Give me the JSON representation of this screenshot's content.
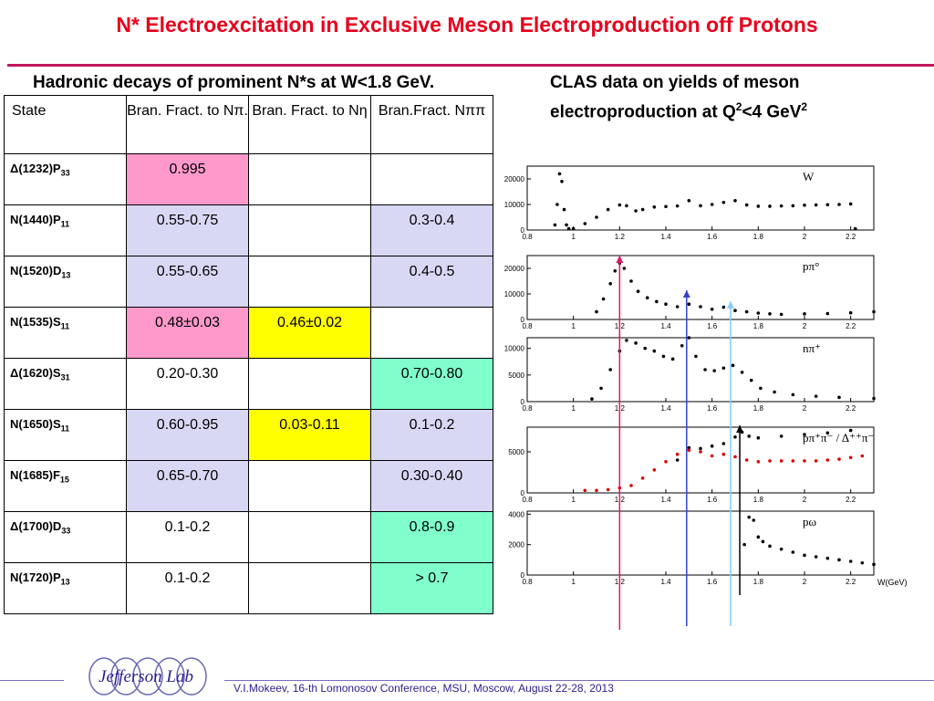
{
  "header": {
    "title": "N* Electroexcitation in Exclusive Meson Electroproduction off Protons",
    "subtitle_left": "Hadronic decays of prominent N*s at W<1.8 GeV.",
    "subtitle_right_line1": "CLAS data on yields of meson",
    "subtitle_right_line2_pre": "electroproduction at  Q",
    "subtitle_right_sup": "2",
    "subtitle_right_line2_post": "<4 GeV",
    "subtitle_right_sup2": "2"
  },
  "table": {
    "headers": [
      "State",
      "Bran. Fract. to Nπ.",
      "Bran. Fract. to Nη",
      "Bran.Fract. Nππ"
    ],
    "rows": [
      {
        "state": "Δ(1232)P",
        "sub": "33",
        "npi": "0.995",
        "neta": "",
        "npipi": "",
        "c1": "pink",
        "c2": "",
        "c3": ""
      },
      {
        "state": "N(1440)P",
        "sub": "11",
        "npi": "0.55-0.75",
        "neta": "",
        "npipi": "0.3-0.4",
        "c1": "lav",
        "c2": "",
        "c3": "lav"
      },
      {
        "state": "N(1520)D",
        "sub": "13",
        "npi": "0.55-0.65",
        "neta": "",
        "npipi": "0.4-0.5",
        "c1": "lav",
        "c2": "",
        "c3": "lav"
      },
      {
        "state": "N(1535)S",
        "sub": "11",
        "npi": "0.48±0.03",
        "neta": "0.46±0.02",
        "npipi": "",
        "c1": "pink",
        "c2": "yel",
        "c3": ""
      },
      {
        "state": "Δ(1620)S",
        "sub": "31",
        "npi": "0.20-0.30",
        "neta": "",
        "npipi": "0.70-0.80",
        "c1": "",
        "c2": "",
        "c3": "aqua"
      },
      {
        "state": "N(1650)S",
        "sub": "11",
        "npi": "0.60-0.95",
        "neta": "0.03-0.11",
        "npipi": "0.1-0.2",
        "c1": "lav",
        "c2": "yel",
        "c3": "lav"
      },
      {
        "state": "N(1685)F",
        "sub": "15",
        "npi": "0.65-0.70",
        "neta": "",
        "npipi": "0.30-0.40",
        "c1": "lav",
        "c2": "",
        "c3": "lav"
      },
      {
        "state": "Δ(1700)D",
        "sub": "33",
        "npi": "0.1-0.2",
        "neta": "",
        "npipi": "0.8-0.9",
        "c1": "",
        "c2": "",
        "c3": "aqua"
      },
      {
        "state": "N(1720)P",
        "sub": "13",
        "npi": "0.1-0.2",
        "neta": "",
        "npipi": "> 0.7",
        "c1": "",
        "c2": "",
        "c3": "aqua"
      }
    ]
  },
  "colors": {
    "pink": "#ff99cc",
    "lav": "#d8d8f5",
    "yel": "#ffff00",
    "aqua": "#80ffcc",
    "title": "#e8001c"
  },
  "chart_data": [
    {
      "type": "scatter",
      "label": "W",
      "ylim": [
        0,
        25000
      ],
      "yticks": [
        "0",
        "10000",
        "20000"
      ],
      "xticks": [
        "0.8",
        "1",
        "1.2",
        "1.4",
        "1.6",
        "1.8",
        "2",
        "2.2"
      ],
      "series": [
        {
          "x": [
            0.92,
            0.93,
            0.94,
            0.95,
            0.96,
            0.97,
            0.98,
            1.0,
            1.05,
            1.1,
            1.15,
            1.2,
            1.23,
            1.27,
            1.3,
            1.35,
            1.4,
            1.45,
            1.5,
            1.55,
            1.6,
            1.65,
            1.7,
            1.75,
            1.8,
            1.85,
            1.9,
            1.95,
            2.0,
            2.05,
            2.1,
            2.15,
            2.2,
            2.22
          ],
          "y": [
            2000,
            10000,
            22000,
            19000,
            8000,
            2000,
            500,
            500,
            2500,
            5000,
            8000,
            9800,
            9500,
            7500,
            8000,
            9000,
            9200,
            9400,
            11500,
            9500,
            10000,
            10800,
            11500,
            9800,
            9300,
            9300,
            9400,
            9500,
            9700,
            9800,
            9900,
            10000,
            10200,
            500
          ]
        }
      ]
    },
    {
      "type": "scatter",
      "label": "pπ°",
      "ylim": [
        0,
        25000
      ],
      "yticks": [
        "0",
        "10000",
        "20000"
      ],
      "xticks": [
        "0.8",
        "1",
        "1.2",
        "1.4",
        "1.6",
        "1.8",
        "2",
        "2.2"
      ],
      "series": [
        {
          "x": [
            1.1,
            1.13,
            1.16,
            1.18,
            1.2,
            1.22,
            1.25,
            1.28,
            1.32,
            1.36,
            1.4,
            1.45,
            1.5,
            1.55,
            1.6,
            1.65,
            1.7,
            1.75,
            1.8,
            1.85,
            1.9,
            2.0,
            2.1,
            2.2,
            2.3
          ],
          "y": [
            3000,
            8000,
            14000,
            19000,
            22000,
            20000,
            15000,
            11000,
            8500,
            7000,
            6000,
            5000,
            6000,
            5000,
            4000,
            4800,
            3500,
            3000,
            2500,
            2200,
            2000,
            2200,
            2300,
            2600,
            3000
          ]
        }
      ]
    },
    {
      "type": "scatter",
      "label": "nπ⁺",
      "ylim": [
        0,
        12000
      ],
      "yticks": [
        "0",
        "5000",
        "10000"
      ],
      "xticks": [
        "0.8",
        "1",
        "1.2",
        "1.4",
        "1.6",
        "1.8",
        "2",
        "2.2"
      ],
      "series": [
        {
          "x": [
            1.08,
            1.12,
            1.16,
            1.2,
            1.23,
            1.27,
            1.31,
            1.35,
            1.39,
            1.43,
            1.47,
            1.5,
            1.53,
            1.57,
            1.61,
            1.65,
            1.69,
            1.73,
            1.77,
            1.81,
            1.87,
            1.95,
            2.05,
            2.15,
            2.3
          ],
          "y": [
            500,
            2500,
            6000,
            9500,
            11500,
            11000,
            10000,
            9500,
            8500,
            8000,
            10500,
            12000,
            8500,
            6000,
            5800,
            6300,
            6800,
            5500,
            4000,
            2500,
            1800,
            1300,
            1000,
            800,
            600
          ]
        }
      ]
    },
    {
      "type": "scatter",
      "label": "pπ⁺π⁻ / Δ⁺⁺π⁻",
      "ylim": [
        0,
        8000
      ],
      "yticks": [
        "0",
        "5000"
      ],
      "xticks": [
        "0.8",
        "1",
        "1.2",
        "1.4",
        "1.6",
        "1.8",
        "2",
        "2.2"
      ],
      "series": [
        {
          "name": "pπ⁺π⁻",
          "x": [
            1.45,
            1.5,
            1.55,
            1.6,
            1.65,
            1.7,
            1.73,
            1.76,
            1.8,
            1.9,
            2.0,
            2.1,
            2.2
          ],
          "y": [
            4000,
            5500,
            5400,
            5700,
            6000,
            6800,
            7400,
            6900,
            6700,
            6900,
            7100,
            7300,
            7600
          ]
        },
        {
          "name": "Δ⁺⁺π⁻",
          "x": [
            1.05,
            1.1,
            1.15,
            1.2,
            1.25,
            1.3,
            1.35,
            1.4,
            1.45,
            1.5,
            1.55,
            1.6,
            1.65,
            1.7,
            1.75,
            1.8,
            1.85,
            1.9,
            1.95,
            2.0,
            2.05,
            2.1,
            2.15,
            2.2,
            2.25
          ],
          "y": [
            300,
            300,
            400,
            600,
            900,
            1800,
            2800,
            3800,
            4700,
            5200,
            5000,
            4500,
            4700,
            4400,
            4000,
            3800,
            3900,
            3900,
            3900,
            3900,
            3900,
            4000,
            4100,
            4300,
            4500
          ]
        }
      ]
    },
    {
      "type": "scatter",
      "label": "pω",
      "xlabel": "W(GeV)",
      "ylim": [
        0,
        4200
      ],
      "yticks": [
        "0",
        "2000",
        "4000"
      ],
      "xticks": [
        "0.8",
        "1",
        "1.2",
        "1.4",
        "1.6",
        "1.8",
        "2",
        "2.2"
      ],
      "series": [
        {
          "x": [
            1.74,
            1.76,
            1.78,
            1.8,
            1.82,
            1.85,
            1.9,
            1.95,
            2.0,
            2.05,
            2.1,
            2.15,
            2.2,
            2.25,
            2.3
          ],
          "y": [
            2000,
            3800,
            3600,
            2500,
            2200,
            1900,
            1700,
            1500,
            1300,
            1200,
            1100,
            1000,
            900,
            800,
            700
          ]
        }
      ]
    }
  ],
  "markers": [
    {
      "w": 1.2,
      "color": "#e0176b"
    },
    {
      "w": 1.49,
      "color": "#3344cc"
    },
    {
      "w": 1.68,
      "color": "#88ccff"
    },
    {
      "w": 1.72,
      "color": "#000000"
    }
  ],
  "footer": {
    "logo_text": "Jefferson Lab",
    "credit": "V.I.Mokeev, 16-th Lomonosov Conference, MSU, Moscow, August 22-28, 2013"
  }
}
